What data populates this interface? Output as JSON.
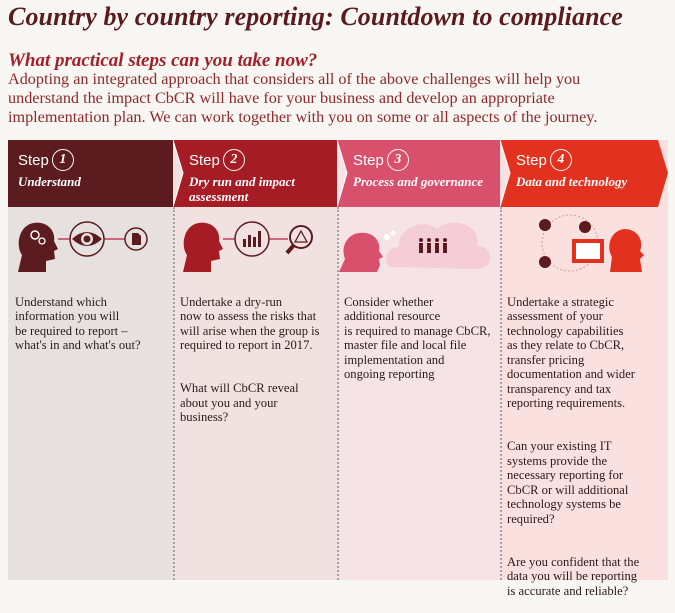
{
  "title": "Country by country reporting: Countdown to compliance",
  "subtitle": "What practical steps can you take now?",
  "intro": "Adopting an integrated approach that considers all of the above challenges will help you\nunderstand the impact CbCR will have for your business and develop an appropriate\nimplementation plan. We can work together with you on some or all aspects of the journey.",
  "colors": {
    "step1": "#5c1b1e",
    "step2": "#a51c24",
    "step3": "#d9506c",
    "step4": "#e2321f"
  },
  "steps": [
    {
      "step_label": "Step",
      "number": "1",
      "name": "Understand",
      "icons": [
        "head-gears-icon",
        "eye-icon",
        "document-icon"
      ],
      "paragraphs": [
        "Understand which\ninformation you will\nbe required to report –\nwhat's in and what's out?"
      ]
    },
    {
      "step_label": "Step",
      "number": "2",
      "name": "Dry run and impact\nassessment",
      "icons": [
        "head-icon",
        "bar-chart-icon",
        "magnifier-warning-icon"
      ],
      "paragraphs": [
        "Undertake a dry-run\nnow to assess the risks that\nwill arise when the group is\nrequired to report in 2017.",
        "What will CbCR reveal\nabout you and your\nbusiness?"
      ]
    },
    {
      "step_label": "Step",
      "number": "3",
      "name": "Process and governance",
      "icons": [
        "head-icon",
        "thought-cloud-people-icon"
      ],
      "paragraphs": [
        "Consider whether\nadditional resource\nis required to manage CbCR,\nmaster file and local file\nimplementation and\nongoing reporting"
      ]
    },
    {
      "step_label": "Step",
      "number": "4",
      "name": "Data and technology",
      "icons": [
        "person-tablet-icon",
        "devices-icon"
      ],
      "paragraphs": [
        "Undertake a strategic\nassessment of your\ntechnology capabilities\nas they relate to CbCR,\ntransfer pricing\ndocumentation and wider\ntransparency and tax\nreporting requirements.",
        "Can your existing IT\nsystems provide the\nnecessary reporting for\nCbCR or will additional\ntechnology systems be\nrequired?",
        "Are you confident that the\ndata you will be reporting\nis accurate and reliable?"
      ]
    }
  ]
}
